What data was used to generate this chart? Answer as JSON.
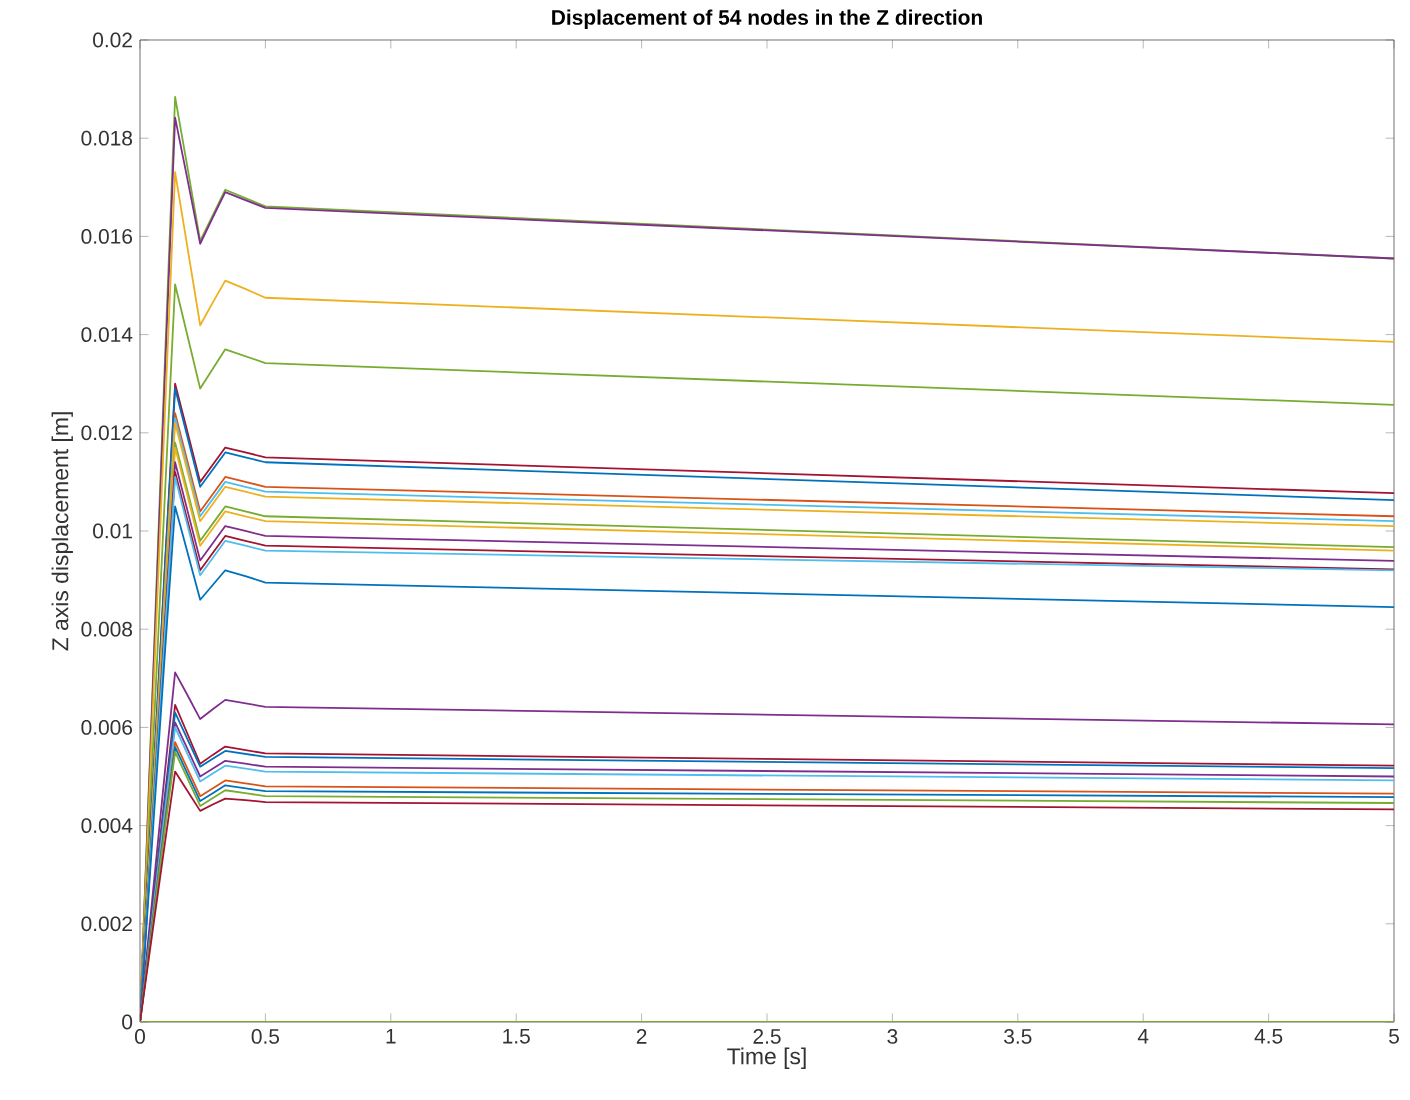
{
  "chart_data": {
    "type": "line",
    "title": "Displacement of 54 nodes in the Z direction",
    "xlabel": "Time [s]",
    "ylabel": "Z axis displacement [m]",
    "x": [
      0,
      0.05,
      0.1,
      0.14,
      0.19,
      0.24,
      0.29,
      0.34,
      0.42,
      0.5,
      5
    ],
    "xlim": [
      0,
      5
    ],
    "xticks": [
      0,
      0.5,
      1,
      1.5,
      2,
      2.5,
      3,
      3.5,
      4,
      4.5,
      5
    ],
    "ylim": [
      0,
      0.02
    ],
    "yticks": [
      0,
      0.002,
      0.004,
      0.006,
      0.008,
      0.01,
      0.012,
      0.014,
      0.016,
      0.018,
      0.02
    ],
    "grid": false,
    "marker": "none",
    "line_style": "solid",
    "series": [
      {
        "color": "#77ac30",
        "values": [
          0,
          0.00678,
          0.01356,
          0.01884,
          0.01738,
          0.01591,
          0.01643,
          0.01695,
          0.01678,
          0.01661,
          0.01555
        ]
      },
      {
        "color": "#7e2f8e",
        "values": [
          0,
          0.00663,
          0.01326,
          0.01842,
          0.01714,
          0.01585,
          0.01638,
          0.0169,
          0.01674,
          0.01658,
          0.01555
        ]
      },
      {
        "color": "#edb120",
        "values": [
          0,
          0.00623,
          0.01246,
          0.01731,
          0.01575,
          0.01419,
          0.01465,
          0.0151,
          0.01493,
          0.01475,
          0.01385
        ]
      },
      {
        "color": "#77ac30",
        "values": [
          0,
          0.00541,
          0.01081,
          0.01502,
          0.01396,
          0.0129,
          0.0133,
          0.0137,
          0.01356,
          0.01342,
          0.01257
        ]
      },
      {
        "color": "#a2142f",
        "values": [
          0,
          0.00468,
          0.00936,
          0.013,
          0.012,
          0.011,
          0.01135,
          0.0117,
          0.0116,
          0.0115,
          0.01077
        ]
      },
      {
        "color": "#0072bd",
        "values": [
          0,
          0.00464,
          0.00929,
          0.0129,
          0.0119,
          0.0109,
          0.01125,
          0.0116,
          0.0115,
          0.0114,
          0.01063
        ]
      },
      {
        "color": "#d95319",
        "values": [
          0,
          0.00446,
          0.00893,
          0.0124,
          0.0114,
          0.0104,
          0.01075,
          0.0111,
          0.011,
          0.0109,
          0.0103
        ]
      },
      {
        "color": "#4dbeee",
        "values": [
          0,
          0.00443,
          0.00886,
          0.0123,
          0.0113,
          0.0103,
          0.01065,
          0.011,
          0.0109,
          0.0108,
          0.0102
        ]
      },
      {
        "color": "#edb120",
        "values": [
          0,
          0.00439,
          0.00878,
          0.0122,
          0.0112,
          0.0102,
          0.01055,
          0.0109,
          0.0108,
          0.0107,
          0.0101
        ]
      },
      {
        "color": "#77ac30",
        "values": [
          0,
          0.00425,
          0.0085,
          0.0118,
          0.0108,
          0.0098,
          0.01015,
          0.0105,
          0.0104,
          0.0103,
          0.00967
        ]
      },
      {
        "color": "#edb120",
        "values": [
          0,
          0.00421,
          0.00842,
          0.0117,
          0.0107,
          0.0097,
          0.01005,
          0.0104,
          0.0103,
          0.0102,
          0.0096
        ]
      },
      {
        "color": "#7e2f8e",
        "values": [
          0,
          0.0041,
          0.00821,
          0.0114,
          0.0104,
          0.0094,
          0.00975,
          0.0101,
          0.01,
          0.0099,
          0.00939
        ]
      },
      {
        "color": "#a2142f",
        "values": [
          0,
          0.00403,
          0.00806,
          0.0112,
          0.0102,
          0.0092,
          0.00955,
          0.0099,
          0.0098,
          0.0097,
          0.00922
        ]
      },
      {
        "color": "#4dbeee",
        "values": [
          0,
          0.004,
          0.00799,
          0.0111,
          0.0101,
          0.0091,
          0.00945,
          0.0098,
          0.0097,
          0.0096,
          0.0092
        ]
      },
      {
        "color": "#0072bd",
        "values": [
          0,
          0.00378,
          0.00756,
          0.0105,
          0.00955,
          0.0086,
          0.0089,
          0.0092,
          0.00908,
          0.00895,
          0.00845
        ]
      },
      {
        "color": "#7e2f8e",
        "values": [
          0,
          0.00256,
          0.00513,
          0.00712,
          0.00665,
          0.00617,
          0.00637,
          0.00656,
          0.00649,
          0.00642,
          0.00606
        ]
      },
      {
        "color": "#a2142f",
        "values": [
          0,
          0.00233,
          0.00465,
          0.00646,
          0.00586,
          0.00526,
          0.00544,
          0.00561,
          0.00554,
          0.00547,
          0.00522
        ]
      },
      {
        "color": "#0072bd",
        "values": [
          0,
          0.00227,
          0.00454,
          0.0063,
          0.00575,
          0.0052,
          0.00536,
          0.00552,
          0.00546,
          0.0054,
          0.00517
        ]
      },
      {
        "color": "#7e2f8e",
        "values": [
          0,
          0.0022,
          0.00439,
          0.0061,
          0.00555,
          0.005,
          0.00516,
          0.00532,
          0.00526,
          0.0052,
          0.005
        ]
      },
      {
        "color": "#4dbeee",
        "values": [
          0,
          0.00216,
          0.00432,
          0.006,
          0.00545,
          0.0049,
          0.00506,
          0.00522,
          0.00516,
          0.0051,
          0.00492
        ]
      },
      {
        "color": "#d95319",
        "values": [
          0,
          0.00205,
          0.0041,
          0.0057,
          0.00515,
          0.0046,
          0.00476,
          0.00492,
          0.00486,
          0.0048,
          0.00465
        ]
      },
      {
        "color": "#0072bd",
        "values": [
          0,
          0.00202,
          0.00403,
          0.0056,
          0.00505,
          0.0045,
          0.00466,
          0.00482,
          0.00476,
          0.0047,
          0.00458
        ]
      },
      {
        "color": "#77ac30",
        "values": [
          0,
          0.00198,
          0.00396,
          0.0055,
          0.00495,
          0.0044,
          0.00456,
          0.00472,
          0.00466,
          0.0046,
          0.00446
        ]
      },
      {
        "color": "#a2142f",
        "values": [
          0,
          0.00184,
          0.00367,
          0.0051,
          0.0047,
          0.0043,
          0.00443,
          0.00455,
          0.00452,
          0.00448,
          0.00433
        ]
      },
      {
        "color": "#77ac30",
        "values": [
          0,
          0,
          0,
          0,
          0,
          0,
          0,
          0,
          0,
          0,
          0
        ]
      }
    ]
  }
}
